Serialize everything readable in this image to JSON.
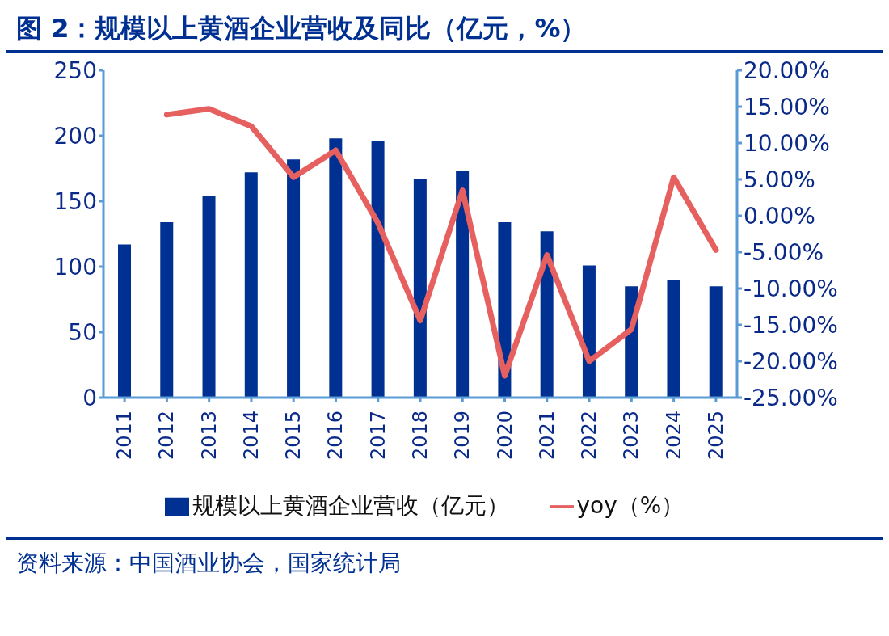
{
  "chart_data": {
    "type": "bar",
    "title": "图 2：规模以上黄酒企业营收及同比（亿元，%）",
    "categories": [
      "2011",
      "2012",
      "2013",
      "2014",
      "2015",
      "2016",
      "2017",
      "2018",
      "2019",
      "2020",
      "2021",
      "2022",
      "2023",
      "2024",
      "2025"
    ],
    "series": [
      {
        "name": "规模以上黄酒企业营收（亿元）",
        "color": "#003091",
        "values": [
          117,
          134,
          154,
          172,
          182,
          198,
          196,
          167,
          173,
          134,
          127,
          101,
          85,
          90,
          85
        ]
      },
      {
        "name": "yoy（%）",
        "type": "line",
        "axis": "y2",
        "color": "#e66060",
        "values": [
          null,
          13.9,
          14.7,
          12.3,
          5.3,
          9.0,
          -1.0,
          -14.4,
          3.5,
          -22.0,
          -5.4,
          -20.0,
          -15.6,
          5.3,
          -4.7
        ]
      }
    ],
    "ylim": [
      0,
      250
    ],
    "yticks": [
      0,
      50,
      100,
      150,
      200,
      250
    ],
    "y2lim": [
      -25,
      20
    ],
    "y2ticks": [
      {
        "value": -25,
        "label": "-25.00%"
      },
      {
        "value": -20,
        "label": "-20.00%"
      },
      {
        "value": -15,
        "label": "-15.00%"
      },
      {
        "value": -10,
        "label": "-10.00%"
      },
      {
        "value": -5,
        "label": "-5.00%"
      },
      {
        "value": 0,
        "label": "0.00%"
      },
      {
        "value": 5,
        "label": "5.00%"
      },
      {
        "value": 10,
        "label": "10.00%"
      },
      {
        "value": 15,
        "label": "15.00%"
      },
      {
        "value": 20,
        "label": "20.00%"
      }
    ],
    "legend": "bottom",
    "grid": false,
    "marker": "none",
    "annotations": [
      "资料来源：中国酒业协会，国家统计局"
    ]
  }
}
